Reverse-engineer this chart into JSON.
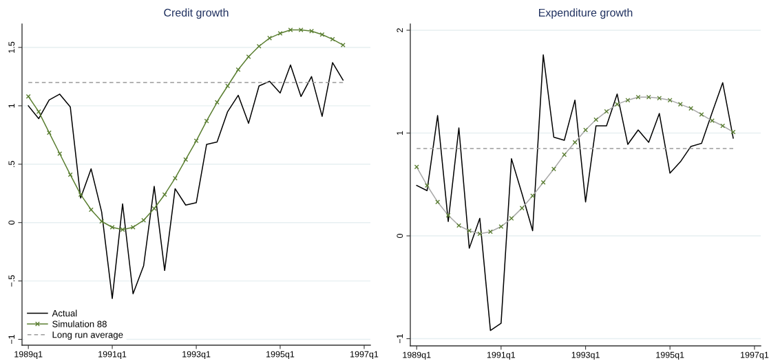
{
  "chart_data": [
    {
      "type": "line",
      "title": "Credit growth",
      "x": [
        "1989-01",
        "1989-04",
        "1989-07",
        "1989-10",
        "1990-01",
        "1990-04",
        "1990-07",
        "1990-10",
        "1991-01",
        "1991-04",
        "1991-07",
        "1991-10",
        "1992-01",
        "1992-04",
        "1992-07",
        "1992-10",
        "1993-01",
        "1993-04",
        "1993-07",
        "1993-10",
        "1994-01",
        "1994-04",
        "1994-07",
        "1994-10",
        "1995-01",
        "1995-04",
        "1995-07",
        "1995-10",
        "1996-01",
        "1996-04",
        "1996-07"
      ],
      "xlim": [
        "1988-11-07",
        "1997-02-24"
      ],
      "xticks": [
        {
          "value": "1989-01",
          "label": "1989q1"
        },
        {
          "value": "1991-01",
          "label": "1991q1"
        },
        {
          "value": "1993-01",
          "label": "1993q1"
        },
        {
          "value": "1995-01",
          "label": "1995q1"
        },
        {
          "value": "1997-01",
          "label": "1997q1"
        }
      ],
      "ylim": [
        -1.05,
        1.7
      ],
      "yticks": [
        {
          "value": -1,
          "label": "−1"
        },
        {
          "value": -0.5,
          "label": "−.5"
        },
        0,
        {
          "value": 0.5,
          "label": ".5"
        },
        1,
        1.5
      ],
      "grid": "y",
      "legend": "bottom left",
      "series": [
        {
          "name": "Actual",
          "color": "#000000",
          "marker": "none",
          "line_style": "solid",
          "values": [
            1.0,
            0.89,
            1.05,
            1.1,
            0.99,
            0.21,
            0.46,
            0.09,
            -0.65,
            0.16,
            -0.61,
            -0.37,
            0.31,
            -0.41,
            0.29,
            0.15,
            0.17,
            0.67,
            0.69,
            0.95,
            1.09,
            0.85,
            1.17,
            1.21,
            1.11,
            1.35,
            1.08,
            1.25,
            0.91,
            1.37,
            1.22
          ]
        },
        {
          "name": "Simulation 88",
          "color": "#5b7f32",
          "marker": "cross",
          "line_style": "solid",
          "values": [
            1.08,
            0.95,
            0.77,
            0.59,
            0.41,
            0.24,
            0.11,
            0.01,
            -0.04,
            -0.06,
            -0.04,
            0.02,
            0.12,
            0.24,
            0.38,
            0.54,
            0.7,
            0.87,
            1.03,
            1.17,
            1.31,
            1.42,
            1.51,
            1.58,
            1.62,
            1.65,
            1.65,
            1.64,
            1.61,
            1.57,
            1.52
          ]
        },
        {
          "name": "Long run average",
          "color": "#9a9a9a",
          "marker": "none",
          "line_style": "dashed",
          "values": [
            1.2,
            1.2,
            1.2,
            1.2,
            1.2,
            1.2,
            1.2,
            1.2,
            1.2,
            1.2,
            1.2,
            1.2,
            1.2,
            1.2,
            1.2,
            1.2,
            1.2,
            1.2,
            1.2,
            1.2,
            1.2,
            1.2,
            1.2,
            1.2,
            1.2,
            1.2,
            1.2,
            1.2,
            1.2,
            1.2,
            1.2
          ]
        }
      ]
    },
    {
      "type": "line",
      "title": "Expenditure growth",
      "x": [
        "1989-01",
        "1989-04",
        "1989-07",
        "1989-10",
        "1990-01",
        "1990-04",
        "1990-07",
        "1990-10",
        "1991-01",
        "1991-04",
        "1991-07",
        "1991-10",
        "1992-01",
        "1992-04",
        "1992-07",
        "1992-10",
        "1993-01",
        "1993-04",
        "1993-07",
        "1993-10",
        "1994-01",
        "1994-04",
        "1994-07",
        "1994-10",
        "1995-01",
        "1995-04",
        "1995-07",
        "1995-10",
        "1996-01",
        "1996-04",
        "1996-07"
      ],
      "xlim": [
        "1988-11-07",
        "1997-02-24"
      ],
      "xticks": [
        {
          "value": "1989-01",
          "label": "1989q1"
        },
        {
          "value": "1991-01",
          "label": "1991q1"
        },
        {
          "value": "1993-01",
          "label": "1993q1"
        },
        {
          "value": "1995-01",
          "label": "1995q1"
        },
        {
          "value": "1997-01",
          "label": "1997q1"
        }
      ],
      "ylim": [
        -1.07,
        2.06
      ],
      "yticks": [
        {
          "value": -1,
          "label": "−1"
        },
        0,
        1,
        2
      ],
      "grid": "y",
      "series": [
        {
          "color": "#000000",
          "marker": "none",
          "line_style": "solid",
          "values": [
            0.49,
            0.44,
            1.17,
            0.14,
            1.05,
            -0.12,
            0.17,
            -0.92,
            -0.85,
            0.75,
            0.41,
            0.05,
            1.76,
            0.96,
            0.93,
            1.32,
            0.33,
            1.07,
            1.07,
            1.38,
            0.89,
            1.03,
            0.91,
            1.19,
            0.61,
            0.72,
            0.87,
            0.9,
            1.2,
            1.49,
            0.95
          ]
        },
        {
          "color": "#a8a8a8",
          "marker": "cross",
          "line_style": "solid",
          "colors": [
            "#5b7f32",
            "#5b7f32",
            "#5b7f32",
            "#5b7f32",
            "#5b7f32",
            "#5b7f32",
            "#5b7f32",
            "#5b7f32",
            "#5b7f32",
            "#5b7f32",
            "#5b7f32",
            "#5b7f32",
            "#5b7f32",
            "#5b7f32",
            "#5b7f32",
            "#5b7f32",
            "#5b7f32",
            "#5b7f32",
            "#5b7f32",
            "#5b7f32",
            "#5b7f32",
            "#5b7f32",
            "#5b7f32",
            "#5b7f32",
            "#5b7f32",
            "#5b7f32",
            "#5b7f32",
            "#5b7f32",
            "#5b7f32",
            "#5b7f32",
            "#5b7f32"
          ],
          "values": [
            0.67,
            0.49,
            0.33,
            0.2,
            0.1,
            0.05,
            0.02,
            0.04,
            0.09,
            0.17,
            0.27,
            0.39,
            0.52,
            0.65,
            0.79,
            0.91,
            1.03,
            1.13,
            1.21,
            1.28,
            1.32,
            1.35,
            1.35,
            1.34,
            1.32,
            1.28,
            1.24,
            1.18,
            1.12,
            1.07,
            1.01
          ]
        },
        {
          "color": "#9a9a9a",
          "marker": "none",
          "line_style": "dashed",
          "values": [
            0.85,
            0.85,
            0.85,
            0.85,
            0.85,
            0.85,
            0.85,
            0.85,
            0.85,
            0.85,
            0.85,
            0.85,
            0.85,
            0.85,
            0.85,
            0.85,
            0.85,
            0.85,
            0.85,
            0.85,
            0.85,
            0.85,
            0.85,
            0.85,
            0.85,
            0.85,
            0.85,
            0.85,
            0.85,
            0.85,
            0.85
          ]
        }
      ]
    }
  ]
}
